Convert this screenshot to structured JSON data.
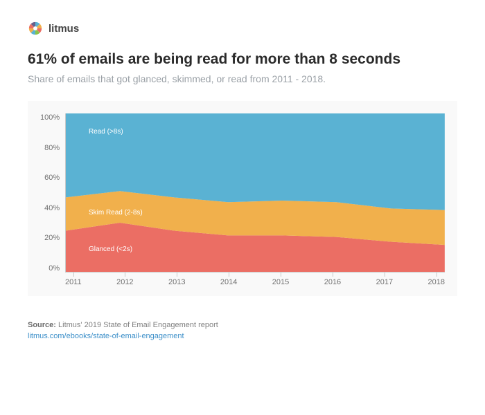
{
  "brand": {
    "name": "litmus"
  },
  "title": "61% of emails are being read for more than 8 seconds",
  "subtitle": "Share of emails that got glanced, skimmed, or read from 2011 - 2018.",
  "chart": {
    "type": "stacked-area",
    "background_color": "#f9f9f9",
    "grid_color": "#c9c9c9",
    "axis_font_color": "#707070",
    "axis_fontsize": 11,
    "label_fontsize": 10,
    "label_color": "#ffffff",
    "ylim": [
      0,
      100
    ],
    "ytick_step": 20,
    "y_ticks": [
      "100%",
      "80%",
      "60%",
      "40%",
      "20%",
      "0%"
    ],
    "x_labels": [
      "2011",
      "2012",
      "2013",
      "2014",
      "2015",
      "2016",
      "2017",
      "2018"
    ],
    "series": [
      {
        "name": "Glanced (<2s)",
        "color": "#eb6e64",
        "values": [
          26,
          31,
          26,
          23,
          23,
          22,
          19,
          17
        ]
      },
      {
        "name": "Skim Read (2-8s)",
        "color": "#f1b04c",
        "values": [
          21,
          20,
          21,
          21,
          22,
          22,
          21,
          22
        ]
      },
      {
        "name": "Read (>8s)",
        "color": "#5ab2d3",
        "values": [
          53,
          49,
          53,
          56,
          55,
          56,
          60,
          61
        ]
      }
    ],
    "series_label_positions": [
      {
        "left_pct": 6,
        "bottom_pct": 12
      },
      {
        "left_pct": 6,
        "bottom_pct": 35
      },
      {
        "left_pct": 6,
        "bottom_pct": 86
      }
    ]
  },
  "footer": {
    "source_label": "Source:",
    "source_text": "Litmus' 2019 State of Email Engagement report",
    "link_text": "litmus.com/ebooks/state-of-email-engagement"
  }
}
